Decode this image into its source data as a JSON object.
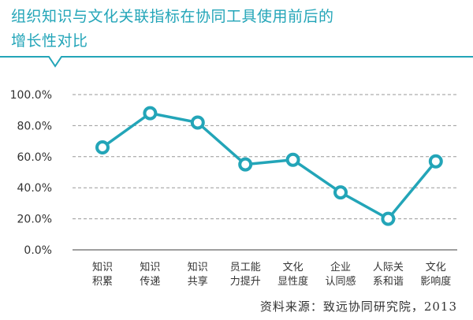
{
  "title": {
    "line1": "组织知识与文化关联指标在协同工具使用前后的",
    "line2": "增长性对比"
  },
  "source": "资料来源：致远协同研究院，2013",
  "colors": {
    "accent": "#23a5b8",
    "grid": "#999999",
    "text": "#333333"
  },
  "chart_data": {
    "type": "line",
    "title": "组织知识与文化关联指标在协同工具使用前后的增长性对比",
    "xlabel": "",
    "ylabel": "",
    "ylim": [
      0,
      100
    ],
    "y_ticks": [
      "0.0%",
      "20.0%",
      "40.0%",
      "60.0%",
      "80.0%",
      "100.0%"
    ],
    "grid": true,
    "categories": [
      [
        "知识",
        "积累"
      ],
      [
        "知识",
        "传递"
      ],
      [
        "知识",
        "共享"
      ],
      [
        "员工能",
        "力提升"
      ],
      [
        "文化",
        "显性度"
      ],
      [
        "企业",
        "认同感"
      ],
      [
        "人际关",
        "系和谐"
      ],
      [
        "文化",
        "影响度"
      ]
    ],
    "series": [
      {
        "name": "增长性",
        "values": [
          66,
          88,
          82,
          55,
          58,
          37,
          20,
          57
        ]
      }
    ]
  }
}
